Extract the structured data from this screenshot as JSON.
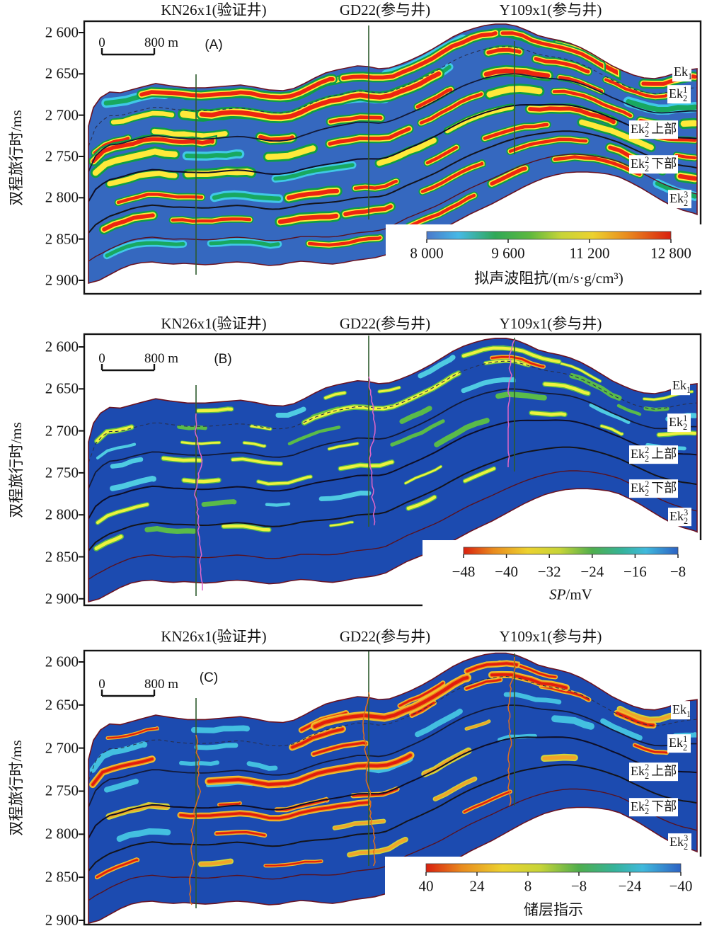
{
  "figure": {
    "y_axis_label": "双程旅行时/ms",
    "y_tick_labels": [
      "2 600",
      "2 650",
      "2 700",
      "2 750",
      "2 800",
      "2 850",
      "2 900"
    ],
    "well_labels": [
      "KN26x1(验证井)",
      "GD22(参与井)",
      "Y109x1(参与井)"
    ],
    "horizons": [
      {
        "base": "Ek",
        "sub": "1",
        "sup": "",
        "suffix": ""
      },
      {
        "base": "Ek",
        "sub": "2",
        "sup": "1",
        "suffix": ""
      },
      {
        "base": "Ek",
        "sub": "2",
        "sup": "2",
        "suffix": "上部"
      },
      {
        "base": "Ek",
        "sub": "2",
        "sup": "2",
        "suffix": "下部"
      },
      {
        "base": "Ek",
        "sub": "2",
        "sup": "3",
        "suffix": ""
      }
    ],
    "scale_bar": {
      "zero": "0",
      "length_label": "800 m"
    }
  },
  "panels": [
    {
      "letter": "(A)",
      "colorbar": {
        "tick_labels": [
          "8 000",
          "9 600",
          "11 200",
          "12 800"
        ],
        "label": "拟声波阻抗/(m/s·g/cm³)"
      }
    },
    {
      "letter": "(B)",
      "colorbar": {
        "tick_labels": [
          "−48",
          "−40",
          "−32",
          "−24",
          "−16",
          "−8"
        ],
        "label_italic": "SP",
        "label": "/mV"
      }
    },
    {
      "letter": "(C)",
      "colorbar": {
        "tick_labels": [
          "40",
          "24",
          "8",
          "−8",
          "−24",
          "−40"
        ],
        "label": "储层指示"
      }
    }
  ],
  "chart_data": [
    {
      "type": "heatmap",
      "panel": "A",
      "variable": "拟声波阻抗",
      "unit": "m/s·g/cm³",
      "colorbar_ticks": [
        8000,
        9600,
        11200,
        12800
      ],
      "colorbar_colors_left_to_right": [
        "#4b79cb",
        "#46b9e6",
        "#2fa857",
        "#c6d438",
        "#e98b1e",
        "#d9200f"
      ],
      "ylabel": "双程旅行时/ms",
      "y_range_ms": [
        2600,
        2900
      ],
      "y_ticks_ms": [
        2600,
        2650,
        2700,
        2750,
        2800,
        2850,
        2900
      ],
      "wells": [
        {
          "name": "KN26x1",
          "role": "验证井"
        },
        {
          "name": "GD22",
          "role": "参与井"
        },
        {
          "name": "Y109x1",
          "role": "参与井"
        }
      ],
      "horizon_markers": [
        "Ek1",
        "Ek2^1",
        "Ek2^2 上部",
        "Ek2^2 下部",
        "Ek2^3"
      ],
      "scale_bar_meters": 800
    },
    {
      "type": "heatmap",
      "panel": "B",
      "variable": "SP",
      "unit": "mV",
      "colorbar_ticks": [
        -48,
        -40,
        -32,
        -24,
        -16,
        -8
      ],
      "colorbar_colors_left_to_right": [
        "#d9200f",
        "#e98b1e",
        "#ecd22f",
        "#4fae4d",
        "#40b9dc",
        "#2c62c4"
      ],
      "ylabel": "双程旅行时/ms",
      "y_range_ms": [
        2600,
        2900
      ],
      "y_ticks_ms": [
        2600,
        2650,
        2700,
        2750,
        2800,
        2850,
        2900
      ],
      "wells": [
        {
          "name": "KN26x1",
          "role": "验证井"
        },
        {
          "name": "GD22",
          "role": "参与井"
        },
        {
          "name": "Y109x1",
          "role": "参与井"
        }
      ],
      "horizon_markers": [
        "Ek1",
        "Ek2^1",
        "Ek2^2 上部",
        "Ek2^2 下部",
        "Ek2^3"
      ],
      "scale_bar_meters": 800
    },
    {
      "type": "heatmap",
      "panel": "C",
      "variable": "储层指示",
      "unit": "",
      "colorbar_ticks": [
        40,
        24,
        8,
        -8,
        -24,
        -40
      ],
      "colorbar_colors_left_to_right": [
        "#d9200f",
        "#e98b1e",
        "#ecd22f",
        "#4fae4d",
        "#40b9dc",
        "#2c62c4"
      ],
      "ylabel": "双程旅行时/ms",
      "y_range_ms": [
        2600,
        2900
      ],
      "y_ticks_ms": [
        2600,
        2650,
        2700,
        2750,
        2800,
        2850,
        2900
      ],
      "wells": [
        {
          "name": "KN26x1",
          "role": "验证井"
        },
        {
          "name": "GD22",
          "role": "参与井"
        },
        {
          "name": "Y109x1",
          "role": "参与井"
        }
      ],
      "horizon_markers": [
        "Ek1",
        "Ek2^1",
        "Ek2^2 上部",
        "Ek2^2 下部",
        "Ek2^3"
      ],
      "scale_bar_meters": 800
    }
  ]
}
